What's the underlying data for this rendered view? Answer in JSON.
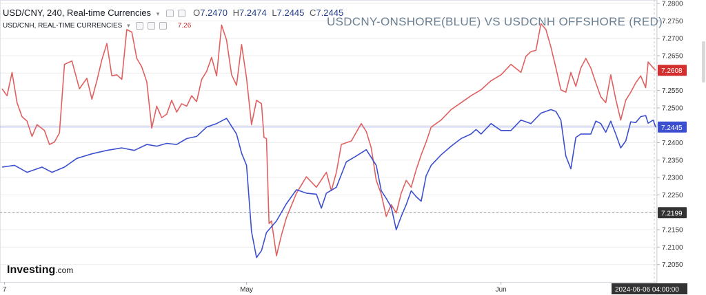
{
  "legend": {
    "primary": {
      "symbol_label": "USD/CNY, 240, Real-time Currencies",
      "open_label": "O",
      "open": "7.2470",
      "high_label": "H",
      "high": "7.2474",
      "low_label": "L",
      "low": "7.2445",
      "close_label": "C",
      "close": "7.2445"
    },
    "secondary": {
      "symbol_label": "USD/CNH, REAL-TIME CURRENCIES",
      "value": "7.26"
    }
  },
  "overlay_title": "USDCNY-ONSHORE(BLUE) VS USDCNH OFFSHORE (RED)",
  "branding": {
    "name": "Investing",
    "suffix": ".com"
  },
  "colors": {
    "onshore_line": "#3b4fcf",
    "offshore_line": "#e06060",
    "price_tag_onshore": "#3b4fcf",
    "price_tag_offshore": "#d32f2f",
    "crosshair_tag": "#333333",
    "grid": "#ececec"
  },
  "chart_data": {
    "type": "line",
    "title": "USDCNY-ONSHORE(BLUE) VS USDCNH OFFSHORE (RED)",
    "xlabel": "",
    "ylabel": "",
    "ylim": [
      7.2,
      7.281
    ],
    "y_ticks": [
      "7.2050",
      "7.2100",
      "7.2150",
      "7.2200",
      "7.2250",
      "7.2300",
      "7.2350",
      "7.2400",
      "7.2450",
      "7.2500",
      "7.2550",
      "7.2600",
      "7.2650",
      "7.2700",
      "7.2750",
      "7.2800"
    ],
    "x_tick_labels": [
      "7",
      "May",
      "Jun"
    ],
    "x_tick_index": [
      1,
      98,
      200
    ],
    "last_value_tags": {
      "offshore": "7.2608",
      "onshore": "7.2445"
    },
    "crosshair": {
      "price": "7.2199",
      "time": "2024-06-06 04:00:00"
    },
    "legend_position": "top-left",
    "grid": true,
    "series": [
      {
        "name": "USD/CNY",
        "points": [
          [
            0,
            7.233
          ],
          [
            5,
            7.2335
          ],
          [
            10,
            7.2315
          ],
          [
            16,
            7.233
          ],
          [
            20,
            7.2315
          ],
          [
            25,
            7.233
          ],
          [
            30,
            7.2355
          ],
          [
            36,
            7.2368
          ],
          [
            42,
            7.2378
          ],
          [
            48,
            7.2385
          ],
          [
            53,
            7.2378
          ],
          [
            58,
            7.2395
          ],
          [
            62,
            7.239
          ],
          [
            66,
            7.2398
          ],
          [
            70,
            7.2395
          ],
          [
            74,
            7.2412
          ],
          [
            78,
            7.2418
          ],
          [
            82,
            7.2445
          ],
          [
            86,
            7.2455
          ],
          [
            90,
            7.247
          ],
          [
            94,
            7.2425
          ],
          [
            96,
            7.237
          ],
          [
            98,
            7.2335
          ],
          [
            100,
            7.2145
          ],
          [
            102,
            7.207
          ],
          [
            104,
            7.209
          ],
          [
            106,
            7.2142
          ],
          [
            110,
            7.2175
          ],
          [
            114,
            7.2225
          ],
          [
            118,
            7.2265
          ],
          [
            122,
            7.2255
          ],
          [
            126,
            7.2252
          ],
          [
            128,
            7.2212
          ],
          [
            130,
            7.2255
          ],
          [
            134,
            7.2272
          ],
          [
            138,
            7.2345
          ],
          [
            142,
            7.2362
          ],
          [
            146,
            7.238
          ],
          [
            150,
            7.2335
          ],
          [
            152,
            7.2262
          ],
          [
            154,
            7.224
          ],
          [
            156,
            7.2215
          ],
          [
            158,
            7.215
          ],
          [
            160,
            7.2188
          ],
          [
            162,
            7.2222
          ],
          [
            164,
            7.2262
          ],
          [
            166,
            7.2245
          ],
          [
            168,
            7.2232
          ],
          [
            170,
            7.2305
          ],
          [
            172,
            7.2335
          ],
          [
            176,
            7.2365
          ],
          [
            180,
            7.239
          ],
          [
            184,
            7.2412
          ],
          [
            188,
            7.2425
          ],
          [
            190,
            7.2438
          ],
          [
            192,
            7.2425
          ],
          [
            196,
            7.2455
          ],
          [
            200,
            7.2435
          ],
          [
            204,
            7.2435
          ],
          [
            208,
            7.2465
          ],
          [
            212,
            7.2455
          ],
          [
            216,
            7.2485
          ],
          [
            220,
            7.2495
          ],
          [
            222,
            7.249
          ],
          [
            224,
            7.2465
          ],
          [
            226,
            7.2362
          ],
          [
            228,
            7.2325
          ],
          [
            230,
            7.2415
          ],
          [
            232,
            7.2425
          ],
          [
            236,
            7.2425
          ],
          [
            238,
            7.2462
          ],
          [
            240,
            7.2455
          ],
          [
            242,
            7.243
          ],
          [
            244,
            7.2462
          ],
          [
            246,
            7.2425
          ],
          [
            248,
            7.2385
          ],
          [
            250,
            7.2405
          ],
          [
            252,
            7.246
          ],
          [
            254,
            7.2458
          ],
          [
            256,
            7.2475
          ],
          [
            258,
            7.2478
          ],
          [
            259,
            7.2456
          ],
          [
            261,
            7.2465
          ],
          [
            262,
            7.2445
          ]
        ]
      },
      {
        "name": "USD/CNH",
        "points": [
          [
            0,
            7.2555
          ],
          [
            2,
            7.2535
          ],
          [
            4,
            7.2602
          ],
          [
            6,
            7.2515
          ],
          [
            8,
            7.2475
          ],
          [
            10,
            7.2462
          ],
          [
            12,
            7.2418
          ],
          [
            14,
            7.2452
          ],
          [
            17,
            7.2435
          ],
          [
            19,
            7.2395
          ],
          [
            21,
            7.2402
          ],
          [
            23,
            7.2428
          ],
          [
            25,
            7.2625
          ],
          [
            28,
            7.2635
          ],
          [
            31,
            7.2555
          ],
          [
            34,
            7.2585
          ],
          [
            36,
            7.2525
          ],
          [
            38,
            7.2578
          ],
          [
            40,
            7.2638
          ],
          [
            42,
            7.2685
          ],
          [
            44,
            7.2592
          ],
          [
            46,
            7.2595
          ],
          [
            48,
            7.2582
          ],
          [
            50,
            7.2725
          ],
          [
            52,
            7.2718
          ],
          [
            54,
            7.2642
          ],
          [
            56,
            7.2618
          ],
          [
            58,
            7.2575
          ],
          [
            60,
            7.2442
          ],
          [
            62,
            7.2505
          ],
          [
            64,
            7.2472
          ],
          [
            66,
            7.2482
          ],
          [
            68,
            7.2522
          ],
          [
            70,
            7.2488
          ],
          [
            72,
            7.2512
          ],
          [
            74,
            7.2505
          ],
          [
            76,
            7.2535
          ],
          [
            78,
            7.2518
          ],
          [
            80,
            7.2582
          ],
          [
            82,
            7.2605
          ],
          [
            84,
            7.2645
          ],
          [
            86,
            7.2592
          ],
          [
            88,
            7.2738
          ],
          [
            90,
            7.2695
          ],
          [
            92,
            7.2595
          ],
          [
            94,
            7.2565
          ],
          [
            96,
            7.2682
          ],
          [
            98,
            7.2585
          ],
          [
            100,
            7.2452
          ],
          [
            102,
            7.2522
          ],
          [
            104,
            7.2512
          ],
          [
            105,
            7.2415
          ],
          [
            106,
            7.2412
          ],
          [
            107,
            7.2168
          ],
          [
            108,
            7.2175
          ],
          [
            110,
            7.2075
          ],
          [
            112,
            7.2135
          ],
          [
            114,
            7.2185
          ],
          [
            118,
            7.2255
          ],
          [
            122,
            7.2302
          ],
          [
            126,
            7.2272
          ],
          [
            130,
            7.2315
          ],
          [
            132,
            7.2262
          ],
          [
            134,
            7.2315
          ],
          [
            136,
            7.2395
          ],
          [
            140,
            7.2405
          ],
          [
            144,
            7.2455
          ],
          [
            146,
            7.2432
          ],
          [
            148,
            7.2385
          ],
          [
            150,
            7.2292
          ],
          [
            152,
            7.2252
          ],
          [
            154,
            7.2188
          ],
          [
            156,
            7.2222
          ],
          [
            158,
            7.2198
          ],
          [
            160,
            7.2255
          ],
          [
            162,
            7.2292
          ],
          [
            164,
            7.2272
          ],
          [
            166,
            7.2322
          ],
          [
            168,
            7.2365
          ],
          [
            170,
            7.2402
          ],
          [
            172,
            7.2445
          ],
          [
            176,
            7.2465
          ],
          [
            180,
            7.2495
          ],
          [
            184,
            7.2515
          ],
          [
            188,
            7.2535
          ],
          [
            192,
            7.2552
          ],
          [
            196,
            7.2578
          ],
          [
            200,
            7.2595
          ],
          [
            204,
            7.2625
          ],
          [
            208,
            7.2602
          ],
          [
            210,
            7.2648
          ],
          [
            212,
            7.2662
          ],
          [
            214,
            7.2665
          ],
          [
            216,
            7.2742
          ],
          [
            218,
            7.2725
          ],
          [
            220,
            7.2675
          ],
          [
            222,
            7.2615
          ],
          [
            224,
            7.2552
          ],
          [
            226,
            7.2545
          ],
          [
            228,
            7.2602
          ],
          [
            230,
            7.2562
          ],
          [
            232,
            7.2615
          ],
          [
            234,
            7.2642
          ],
          [
            236,
            7.2615
          ],
          [
            238,
            7.2572
          ],
          [
            240,
            7.2532
          ],
          [
            242,
            7.2515
          ],
          [
            244,
            7.2595
          ],
          [
            246,
            7.2525
          ],
          [
            248,
            7.2465
          ],
          [
            250,
            7.2522
          ],
          [
            252,
            7.2545
          ],
          [
            254,
            7.2572
          ],
          [
            256,
            7.2592
          ],
          [
            258,
            7.2558
          ],
          [
            259,
            7.2632
          ],
          [
            261,
            7.2615
          ],
          [
            262,
            7.2608
          ]
        ]
      }
    ]
  }
}
